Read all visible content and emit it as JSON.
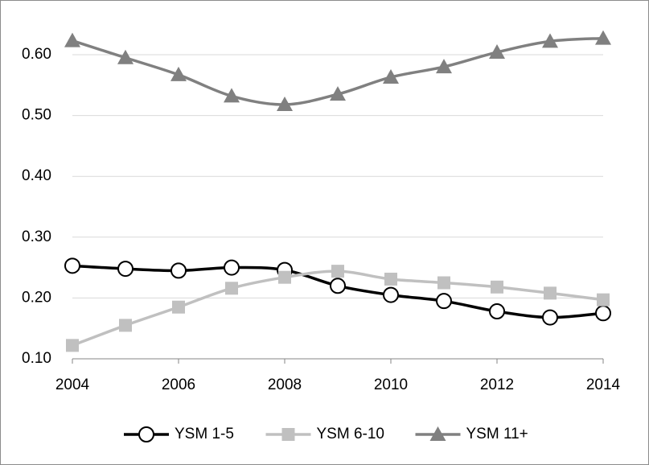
{
  "chart_data": {
    "type": "line",
    "x": [
      2004,
      2005,
      2006,
      2007,
      2008,
      2009,
      2010,
      2011,
      2012,
      2013,
      2014
    ],
    "series": [
      {
        "name": "YSM 1-5",
        "color": "#000000",
        "marker": "circle",
        "values": [
          0.253,
          0.248,
          0.245,
          0.25,
          0.246,
          0.22,
          0.205,
          0.195,
          0.178,
          0.168,
          0.175
        ]
      },
      {
        "name": "YSM 6-10",
        "color": "#c0c0c0",
        "marker": "square",
        "values": [
          0.122,
          0.155,
          0.185,
          0.216,
          0.234,
          0.244,
          0.231,
          0.225,
          0.218,
          0.208,
          0.197
        ]
      },
      {
        "name": "YSM 11+",
        "color": "#808080",
        "marker": "triangle",
        "values": [
          0.623,
          0.595,
          0.567,
          0.532,
          0.518,
          0.535,
          0.563,
          0.58,
          0.604,
          0.622,
          0.627
        ]
      }
    ],
    "xlim": [
      2004,
      2014
    ],
    "xticks": [
      2004,
      2006,
      2008,
      2010,
      2012,
      2014
    ],
    "ylim": [
      0.1,
      0.68
    ],
    "yticks": [
      {
        "value": 0.1,
        "label": "0.10"
      },
      {
        "value": 0.2,
        "label": "0.20"
      },
      {
        "value": 0.3,
        "label": "0.30"
      },
      {
        "value": 0.4,
        "label": "0.40"
      },
      {
        "value": 0.5,
        "label": "0.50"
      },
      {
        "value": 0.6,
        "label": "0.60"
      }
    ],
    "grid": true,
    "smooth": true,
    "legend": "bottom"
  }
}
